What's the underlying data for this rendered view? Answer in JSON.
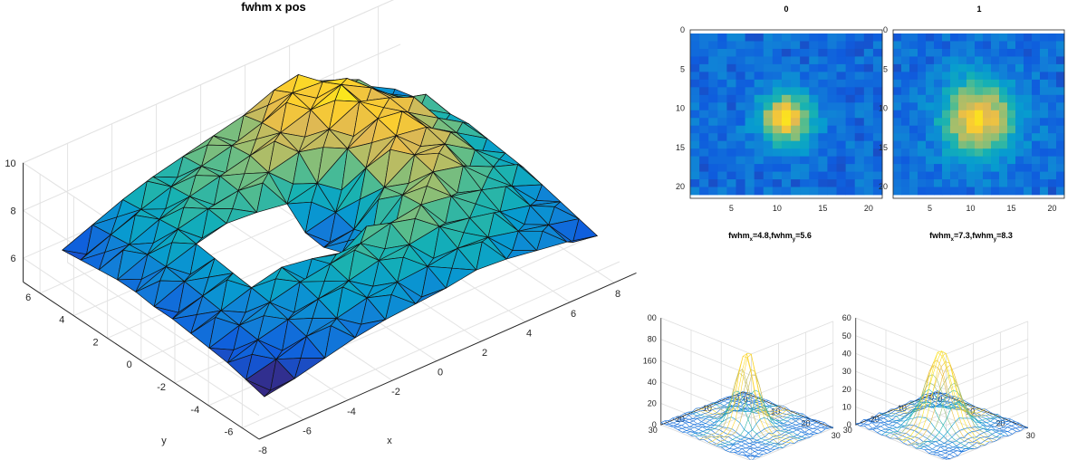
{
  "chart_data": [
    {
      "type": "surface",
      "title": "fwhm x pos",
      "xlabel": "x",
      "ylabel": "y",
      "zlabel": "",
      "xlim": [
        -8,
        9
      ],
      "ylim": [
        -7,
        7
      ],
      "zlim": [
        5,
        10
      ],
      "x_ticks": [
        -8,
        -6,
        -4,
        -2,
        0,
        2,
        4,
        6,
        8
      ],
      "y_ticks": [
        -6,
        -4,
        -2,
        0,
        2,
        4,
        6
      ],
      "z_ticks": [
        6,
        8,
        10
      ],
      "grid": true,
      "colormap": "parula",
      "grid_size": [
        12,
        12
      ],
      "z_samples": [
        [
          5.9,
          6.1,
          6.4,
          6.7,
          6.9,
          7.0,
          7.1,
          7.3,
          7.2,
          7.0,
          6.8,
          6.5
        ],
        [
          6.1,
          6.4,
          6.8,
          7.0,
          7.3,
          7.4,
          7.5,
          7.7,
          7.6,
          7.3,
          7.0,
          6.7
        ],
        [
          6.3,
          6.7,
          7.0,
          7.3,
          7.5,
          7.8,
          7.9,
          8.1,
          7.9,
          7.6,
          7.3,
          6.9
        ],
        [
          6.4,
          6.8,
          7.2,
          7.5,
          7.7,
          8.0,
          8.3,
          8.5,
          8.3,
          8.0,
          7.6,
          7.1
        ],
        [
          6.5,
          6.9,
          7.3,
          7.6,
          7.4,
          7.1,
          7.3,
          8.4,
          8.8,
          8.5,
          7.9,
          7.3
        ],
        [
          6.6,
          7.0,
          7.4,
          7.2,
          6.9,
          6.8,
          7.0,
          8.2,
          9.0,
          8.9,
          8.1,
          7.4
        ],
        [
          6.6,
          7.1,
          7.5,
          7.3,
          7.0,
          6.9,
          7.2,
          8.5,
          9.3,
          9.1,
          8.3,
          7.5
        ],
        [
          6.7,
          7.2,
          7.6,
          7.9,
          7.8,
          7.6,
          7.9,
          8.8,
          9.5,
          9.2,
          8.4,
          7.6
        ],
        [
          6.7,
          7.2,
          7.7,
          8.0,
          8.2,
          8.4,
          8.7,
          9.1,
          9.7,
          9.3,
          8.3,
          7.5
        ],
        [
          6.6,
          7.1,
          7.6,
          8.0,
          8.3,
          8.6,
          9.0,
          9.4,
          9.9,
          9.2,
          8.2,
          7.4
        ],
        [
          6.5,
          7.0,
          7.5,
          7.9,
          8.2,
          8.5,
          8.9,
          9.6,
          9.5,
          8.9,
          7.9,
          7.2
        ],
        [
          6.4,
          6.9,
          7.4,
          7.8,
          8.1,
          8.4,
          8.7,
          9.2,
          9.0,
          8.5,
          7.7,
          7.0
        ]
      ],
      "hole": {
        "x": [
          -4,
          0
        ],
        "y": [
          -2,
          2
        ]
      }
    },
    {
      "type": "heatmap",
      "title": "0",
      "x_ticks": [
        5,
        10,
        15,
        20
      ],
      "y_ticks": [
        0,
        5,
        10,
        15,
        20
      ],
      "xlim": [
        0.5,
        21.5
      ],
      "ylim": [
        0,
        21.5
      ],
      "colormap": "parula",
      "peak": {
        "x": 11,
        "y": 11,
        "sigma_x": 2.0,
        "sigma_y": 2.4
      }
    },
    {
      "type": "heatmap",
      "title": "1",
      "x_ticks": [
        5,
        10,
        15,
        20
      ],
      "y_ticks": [
        0,
        5,
        10,
        15,
        20
      ],
      "xlim": [
        0.5,
        21.5
      ],
      "ylim": [
        0,
        21.5
      ],
      "colormap": "parula",
      "peak": {
        "x": 11,
        "y": 11,
        "sigma_x": 3.1,
        "sigma_y": 3.5
      }
    },
    {
      "type": "mesh",
      "title": "fwhm_x=4.8,fwhm_y=5.6",
      "title_parts": {
        "a": "fwhm",
        "asub": "x",
        "b": "=4.8,fwhm",
        "bsub": "y",
        "c": "=5.6"
      },
      "z_ticks": [
        "0",
        "20",
        "40",
        "60",
        "80",
        "100"
      ],
      "z_tick_labels": [
        "0",
        "20",
        "40",
        "160",
        "80",
        "00"
      ],
      "x_ticks": [
        0,
        10,
        20,
        30
      ],
      "y_ticks": [
        0,
        10,
        20,
        30
      ],
      "zlim": [
        0,
        100
      ],
      "peak_height": 70
    },
    {
      "type": "mesh",
      "title": "fwhm_x=7.3,fwhm_y=8.3",
      "title_parts": {
        "a": "fwhm",
        "asub": "x",
        "b": "=7.3,fwhm",
        "bsub": "y",
        "c": "=8.3"
      },
      "z_tick_labels": [
        "0",
        "10",
        "20",
        "30",
        "40",
        "50",
        "60"
      ],
      "x_ticks": [
        0,
        10,
        20,
        30
      ],
      "y_ticks": [
        0,
        10,
        20,
        30
      ],
      "zlim": [
        0,
        60
      ],
      "peak_height": 42
    }
  ]
}
